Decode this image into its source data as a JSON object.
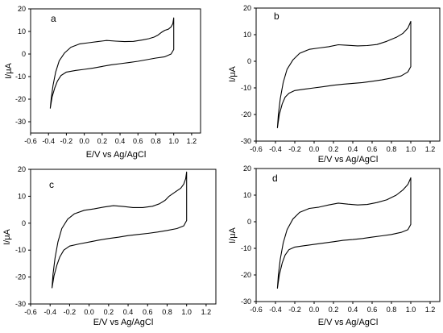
{
  "chart_data": [
    {
      "type": "line",
      "panel": "a",
      "xlabel": "E/V vs Ag/AgCl",
      "ylabel": "I/μA",
      "xlim": [
        -0.6,
        1.3
      ],
      "ylim": [
        -35,
        20
      ],
      "xticks": [
        "-0.6",
        "-0.4",
        "-0.2",
        "0.0",
        "0.2",
        "0.4",
        "0.6",
        "0.8",
        "1.0",
        "1.2"
      ],
      "yticks": [
        "20",
        "10",
        "0",
        "-10",
        "-20",
        "-30"
      ],
      "series": [
        {
          "x": [
            -0.38,
            -0.37,
            -0.35,
            -0.32,
            -0.28,
            -0.22,
            -0.15,
            -0.05,
            0.05,
            0.15,
            0.25,
            0.35,
            0.45,
            0.55,
            0.65,
            0.72,
            0.78,
            0.82,
            0.86,
            0.9,
            0.94,
            0.97,
            0.99,
            1.0,
            1.0,
            0.97,
            0.9,
            0.8,
            0.7,
            0.6,
            0.5,
            0.4,
            0.3,
            0.2,
            0.1,
            0.0,
            -0.1,
            -0.2,
            -0.26,
            -0.3,
            -0.33,
            -0.36,
            -0.38
          ],
          "y": [
            -24,
            -20,
            -14,
            -8,
            -3,
            0.5,
            3,
            4.5,
            5,
            5.5,
            6,
            5.7,
            5.5,
            5.6,
            6.2,
            6.8,
            7.5,
            8.3,
            9.5,
            10.5,
            11,
            12,
            13.5,
            16,
            2,
            0,
            -1.2,
            -1.8,
            -2.5,
            -3.2,
            -3.8,
            -4.3,
            -4.8,
            -5.5,
            -6.2,
            -6.8,
            -7.3,
            -8,
            -9.5,
            -12,
            -15,
            -19,
            -24
          ]
        }
      ]
    },
    {
      "type": "line",
      "panel": "b",
      "xlabel": "E/V vs Ag/AgCl",
      "ylabel": "I/μA",
      "xlim": [
        -0.6,
        1.3
      ],
      "ylim": [
        -30,
        20
      ],
      "xticks": [
        "-0.6",
        "-0.4",
        "-0.2",
        "0.0",
        "0.2",
        "0.4",
        "0.6",
        "0.8",
        "1.0",
        "1.2"
      ],
      "yticks": [
        "20",
        "10",
        "0",
        "-10",
        "-20",
        "-30"
      ],
      "series": [
        {
          "x": [
            -0.38,
            -0.37,
            -0.35,
            -0.32,
            -0.28,
            -0.22,
            -0.15,
            -0.05,
            0.05,
            0.15,
            0.25,
            0.35,
            0.45,
            0.55,
            0.65,
            0.75,
            0.85,
            0.92,
            0.97,
            1.0,
            1.0,
            0.97,
            0.9,
            0.8,
            0.7,
            0.6,
            0.5,
            0.4,
            0.3,
            0.2,
            0.1,
            0.0,
            -0.1,
            -0.2,
            -0.26,
            -0.3,
            -0.33,
            -0.36,
            -0.38
          ],
          "y": [
            -25,
            -20,
            -14,
            -8,
            -3,
            0.5,
            3,
            4.5,
            5,
            5.5,
            6.2,
            6,
            5.8,
            5.9,
            6.3,
            7.5,
            9,
            10.5,
            12.5,
            15,
            -2,
            -4,
            -5.5,
            -6.3,
            -7,
            -7.5,
            -8,
            -8.3,
            -8.6,
            -9,
            -9.5,
            -10,
            -10.5,
            -11,
            -12,
            -13.5,
            -16,
            -20,
            -25
          ]
        }
      ]
    },
    {
      "type": "line",
      "panel": "c",
      "xlabel": "E/V vs Ag/AgCl",
      "ylabel": "I/μA",
      "xlim": [
        -0.6,
        1.3
      ],
      "ylim": [
        -30,
        20
      ],
      "xticks": [
        "-0.6",
        "-0.4",
        "-0.2",
        "0.0",
        "0.2",
        "0.4",
        "0.6",
        "0.8",
        "1.0",
        "1.2"
      ],
      "yticks": [
        "20",
        "10",
        "0",
        "-10",
        "-20",
        "-30"
      ],
      "series": [
        {
          "x": [
            -0.38,
            -0.37,
            -0.35,
            -0.32,
            -0.28,
            -0.22,
            -0.15,
            -0.05,
            0.05,
            0.15,
            0.25,
            0.35,
            0.45,
            0.55,
            0.65,
            0.72,
            0.78,
            0.82,
            0.86,
            0.9,
            0.94,
            0.97,
            0.99,
            1.0,
            1.0,
            0.97,
            0.9,
            0.8,
            0.7,
            0.6,
            0.5,
            0.4,
            0.3,
            0.2,
            0.1,
            0.0,
            -0.1,
            -0.2,
            -0.26,
            -0.3,
            -0.33,
            -0.36,
            -0.38
          ],
          "y": [
            -24,
            -19,
            -13,
            -7,
            -2,
            1.5,
            3.5,
            4.8,
            5.3,
            6,
            6.5,
            6.2,
            5.8,
            5.8,
            6.3,
            7.2,
            8.5,
            10,
            11,
            12,
            13,
            14.5,
            16.5,
            19,
            1,
            -1,
            -2,
            -2.7,
            -3.3,
            -3.8,
            -4.2,
            -4.6,
            -5.2,
            -5.7,
            -6.3,
            -7,
            -7.7,
            -8.5,
            -10,
            -12.5,
            -15.5,
            -19.5,
            -24
          ]
        }
      ]
    },
    {
      "type": "line",
      "panel": "d",
      "xlabel": "E/V vs Ag/AgCl",
      "ylabel": "I/μA",
      "xlim": [
        -0.6,
        1.3
      ],
      "ylim": [
        -30,
        20
      ],
      "xticks": [
        "-0.6",
        "-0.4",
        "-0.2",
        "0.0",
        "0.2",
        "0.4",
        "0.6",
        "0.8",
        "1.0",
        "1.2"
      ],
      "yticks": [
        "20",
        "10",
        "0",
        "-10",
        "-20",
        "-30"
      ],
      "series": [
        {
          "x": [
            -0.38,
            -0.37,
            -0.35,
            -0.32,
            -0.28,
            -0.22,
            -0.15,
            -0.05,
            0.05,
            0.15,
            0.25,
            0.35,
            0.45,
            0.55,
            0.65,
            0.75,
            0.85,
            0.92,
            0.97,
            1.0,
            1.0,
            0.97,
            0.9,
            0.8,
            0.7,
            0.6,
            0.5,
            0.4,
            0.3,
            0.2,
            0.1,
            0.0,
            -0.1,
            -0.2,
            -0.26,
            -0.3,
            -0.33,
            -0.36,
            -0.38
          ],
          "y": [
            -25,
            -20,
            -14,
            -8,
            -3,
            1,
            3.5,
            5,
            5.5,
            6.3,
            7,
            6.6,
            6.3,
            6.5,
            7.2,
            8.2,
            10,
            12,
            14,
            16.5,
            -1,
            -3,
            -4,
            -4.8,
            -5.3,
            -5.8,
            -6.3,
            -6.7,
            -7,
            -7.5,
            -8,
            -8.5,
            -9,
            -9.5,
            -10.5,
            -12.5,
            -15.5,
            -20,
            -25
          ]
        }
      ]
    }
  ]
}
